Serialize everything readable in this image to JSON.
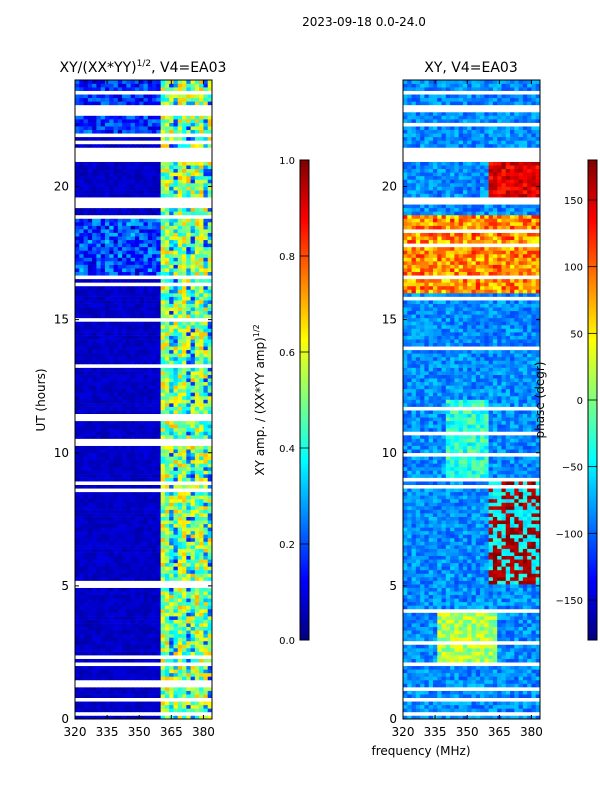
{
  "figure": {
    "suptitle": "2023-09-18 0.0-24.0",
    "xlabel": "frequency (MHz)"
  },
  "colors": {
    "jet": [
      "#00007f",
      "#0000ff",
      "#007fff",
      "#00ffff",
      "#7fff7f",
      "#ffff00",
      "#ff7f00",
      "#ff0000",
      "#7f0000"
    ],
    "gap": "#ffffff",
    "axis": "#000000"
  },
  "chart_data": [
    {
      "type": "heatmap",
      "title": "XY/(XX*YY)^1/2, V4=EA03",
      "title_main": "XY/(XX*YY)",
      "title_sup": "1/2",
      "title_tail": ", V4=EA03",
      "ylabel": "UT (hours)",
      "xlim": [
        320,
        384
      ],
      "ylim": [
        0,
        24
      ],
      "xticks": [
        320,
        335,
        350,
        365,
        380
      ],
      "yticks": [
        0,
        5,
        10,
        15,
        20
      ],
      "colorbar": {
        "label_main": "XY amp. / (XX*YY amp)",
        "label_sup": "1/2",
        "range": [
          0.0,
          1.0
        ],
        "ticks": [
          "0.0",
          "0.2",
          "0.4",
          "0.6",
          "0.8",
          "1.0"
        ]
      },
      "description": "normalized cross-hand amplitude; low (~0.05) below 360 MHz, bright RFI-like columns near 362-382 MHz"
    },
    {
      "type": "heatmap",
      "title": "XY, V4=EA03",
      "ylabel": "phase (degr)",
      "xlim": [
        320,
        384
      ],
      "ylim": [
        0,
        24
      ],
      "xticks": [
        320,
        335,
        350,
        365,
        380
      ],
      "yticks": [
        0,
        5,
        10,
        15,
        20
      ],
      "colorbar": {
        "label_main": "phase (degr)",
        "range": [
          -180,
          180
        ],
        "ticks": [
          "-150",
          "-100",
          "-50",
          "0",
          "50",
          "100",
          "150"
        ]
      },
      "description": "cross-hand phase in degrees, mostly blue (-90 to -150) with yellow/red bands"
    }
  ]
}
